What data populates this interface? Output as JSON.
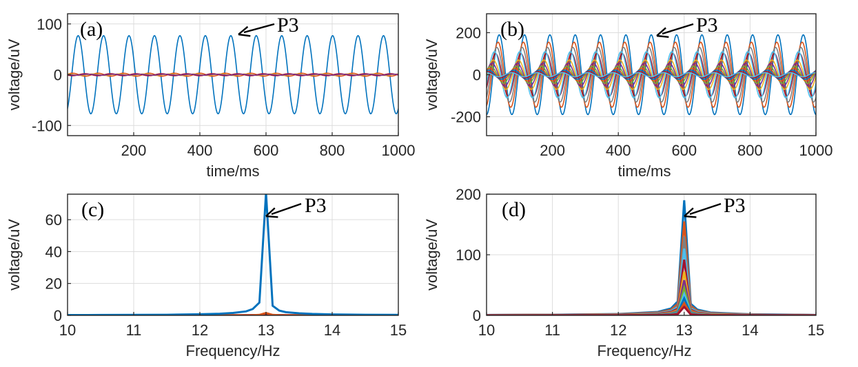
{
  "chart_data": [
    {
      "panel": "(a)",
      "type": "line",
      "xlabel": "time/ms",
      "ylabel": "voltage/uV",
      "xlim": [
        0,
        1000
      ],
      "ylim": [
        -120,
        120
      ],
      "xticks": [
        200,
        400,
        600,
        800,
        1000
      ],
      "yticks": [
        -100,
        0,
        100
      ],
      "grid": true,
      "annotation": "P3",
      "annotation_point": {
        "x": 520,
        "y": 80
      },
      "frequency_hz": 13,
      "series": [
        {
          "color": "#0072BD",
          "amplitude": 77,
          "phase_deg": -60
        },
        {
          "color": "#D95319",
          "amplitude": 3,
          "phase_deg": 20
        },
        {
          "color": "#A2142F",
          "amplitude": 2,
          "phase_deg": 200
        },
        {
          "color": "#EDB120",
          "amplitude": 1.5,
          "phase_deg": 90
        },
        {
          "color": "#7E2F8E",
          "amplitude": 1,
          "phase_deg": 150
        }
      ]
    },
    {
      "panel": "(b)",
      "type": "line",
      "xlabel": "time/ms",
      "ylabel": "voltage/uV",
      "xlim": [
        0,
        1000
      ],
      "ylim": [
        -290,
        290
      ],
      "xticks": [
        200,
        400,
        600,
        800,
        1000
      ],
      "yticks": [
        -200,
        0,
        200
      ],
      "grid": true,
      "annotation": "P3",
      "annotation_point": {
        "x": 520,
        "y": 195
      },
      "frequency_hz": 13,
      "series": [
        {
          "color": "#0072BD",
          "amplitude": 190
        },
        {
          "color": "#D95319",
          "amplitude": 155
        },
        {
          "color": "#808080",
          "amplitude": 130
        },
        {
          "color": "#A2142F",
          "amplitude": 100
        },
        {
          "color": "#4DBEEE",
          "amplitude": 110
        },
        {
          "color": "#EDB120",
          "amplitude": 70
        },
        {
          "color": "#7E2F8E",
          "amplitude": 55
        },
        {
          "color": "#77AC30",
          "amplitude": 40
        },
        {
          "color": "#D95319",
          "amplitude": 30
        },
        {
          "color": "#0072BD",
          "amplitude": 22
        },
        {
          "color": "#A2142F",
          "amplitude": 15
        },
        {
          "color": "#4DBEEE",
          "amplitude": 10
        }
      ]
    },
    {
      "panel": "(c)",
      "type": "line",
      "xlabel": "Frequency/Hz",
      "ylabel": "voltage/uV",
      "xlim": [
        10,
        15
      ],
      "ylim": [
        0,
        76
      ],
      "xticks": [
        10,
        11,
        12,
        13,
        14,
        15
      ],
      "yticks": [
        0,
        20,
        40,
        60
      ],
      "grid": true,
      "annotation": "P3",
      "annotation_point": {
        "x": 13.0,
        "y": 73
      },
      "series": [
        {
          "color": "#0072BD",
          "x": [
            10,
            10.5,
            11,
            11.5,
            12,
            12.3,
            12.5,
            12.7,
            12.8,
            12.9,
            13.0,
            13.1,
            13.2,
            13.3,
            13.5,
            13.7,
            14,
            14.5,
            15
          ],
          "y": [
            0.2,
            0.25,
            0.3,
            0.4,
            0.7,
            1.0,
            1.5,
            2.5,
            4,
            8,
            77,
            6,
            3,
            2,
            1.3,
            0.9,
            0.6,
            0.4,
            0.3
          ]
        },
        {
          "color": "#D95319",
          "x": [
            10,
            12,
            12.8,
            12.9,
            13.0,
            13.1,
            13.2,
            14,
            15
          ],
          "y": [
            0,
            0.02,
            0.1,
            0.3,
            1.5,
            0.3,
            0.1,
            0.02,
            0
          ]
        },
        {
          "color": "#A2142F",
          "x": [
            10,
            12,
            12.9,
            13.0,
            13.1,
            14,
            15
          ],
          "y": [
            0,
            0.01,
            0.2,
            1.0,
            0.2,
            0.01,
            0
          ]
        }
      ]
    },
    {
      "panel": "(d)",
      "type": "line",
      "xlabel": "Frequency/Hz",
      "ylabel": "voltage/uV",
      "xlim": [
        10,
        15
      ],
      "ylim": [
        0,
        200
      ],
      "xticks": [
        10,
        11,
        12,
        13,
        14,
        15
      ],
      "yticks": [
        0,
        100,
        200
      ],
      "grid": true,
      "annotation": "P3",
      "annotation_point": {
        "x": 13.02,
        "y": 190
      },
      "peak_x": [
        10,
        11,
        12,
        12.6,
        12.8,
        12.9,
        13.0,
        13.1,
        13.2,
        13.4,
        14,
        15
      ],
      "peak_profile": [
        0.004,
        0.006,
        0.012,
        0.03,
        0.06,
        0.12,
        1.0,
        0.1,
        0.05,
        0.025,
        0.01,
        0.004
      ],
      "series": [
        {
          "color": "#0072BD",
          "peak": 190
        },
        {
          "color": "#D95319",
          "peak": 155
        },
        {
          "color": "#808080",
          "peak": 130
        },
        {
          "color": "#4DBEEE",
          "peak": 110
        },
        {
          "color": "#A2142F",
          "peak": 92
        },
        {
          "color": "#EDB120",
          "peak": 72
        },
        {
          "color": "#7E2F8E",
          "peak": 58
        },
        {
          "color": "#77AC30",
          "peak": 45
        },
        {
          "color": "#4DBEEE",
          "peak": 35
        },
        {
          "color": "#0072BD",
          "peak": 28
        },
        {
          "color": "#D95319",
          "peak": 20
        },
        {
          "color": "#A2142F",
          "peak": 14
        }
      ]
    }
  ]
}
